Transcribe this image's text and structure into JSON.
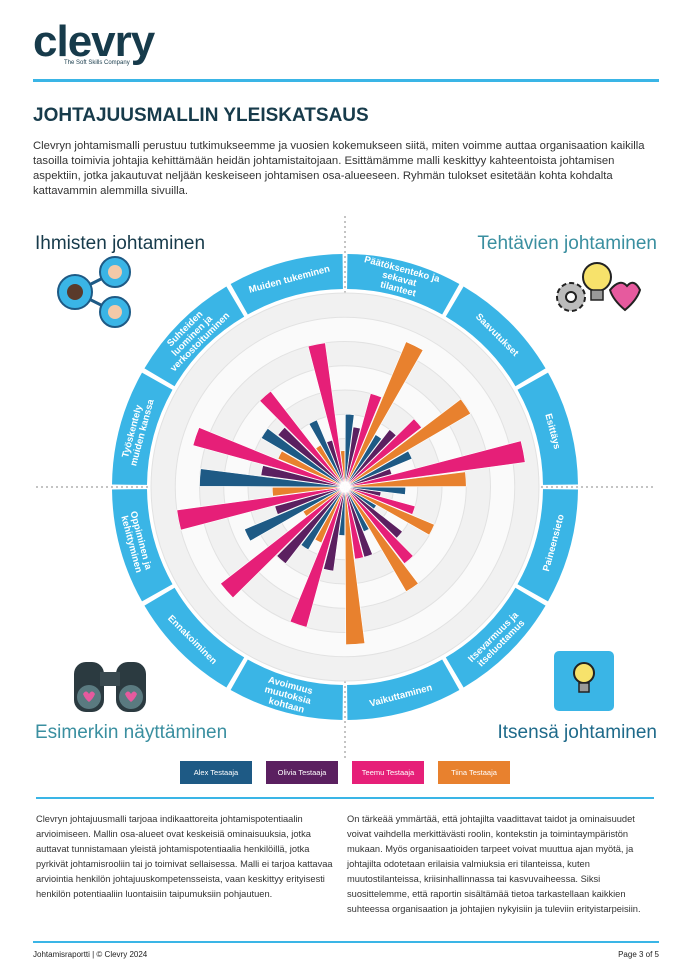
{
  "header": {
    "logo": "clevry",
    "tagline": "The Soft Skills Company"
  },
  "title": "JOHTAJUUSMALLIN YLEISKATSAUS",
  "intro": "Clevryn johtamismalli perustuu tutkimukseemme ja vuosien kokemukseen siitä, miten voimme auttaa organisaation kaikilla tasoilla toimivia johtajia kehittämään heidän johtamistaitojaan. Esittämämme malli keskittyy kahteentoista johtamisen aspektiin, jotka jakautuvat neljään keskeiseen johtamisen osa-alueeseen. Ryhmän tulokset esitetään kohta kohdalta kattavammin alemmilla sivuilla.",
  "chart_data": {
    "type": "radial_bar",
    "quadrant_labels": [
      "Ihmisten johtaminen",
      "Tehtävien johtaminen",
      "Esimerkin näyttäminen",
      "Itsensä johtaminen"
    ],
    "categories": [
      "Päätöksenteko ja sekavat tilanteet",
      "Saavutukset",
      "Esittäys",
      "Paineensieto",
      "Itsevarmuus ja itseluottamus",
      "Vaikuttaminen",
      "Avoimuus muutoksia kohtaan",
      "Ennakoiminen",
      "Oppiminen ja kehittyminen",
      "Työskentely muiden kanssa",
      "Suhteiden luominen ja verkostoituminen",
      "Muiden tukeminen"
    ],
    "series": [
      {
        "name": "Alex Testaaja",
        "color": "#1e5a85",
        "values": [
          3,
          2.5,
          3,
          2.5,
          1.5,
          2,
          2,
          3,
          4.5,
          6,
          4,
          3
        ]
      },
      {
        "name": "Olivia Testaaja",
        "color": "#5b2060",
        "values": [
          2.5,
          3,
          2,
          1.5,
          3,
          3,
          3.5,
          4,
          3,
          3.5,
          3.5,
          2
        ]
      },
      {
        "name": "Teemu Testaaja",
        "color": "#e61f78",
        "values": [
          4,
          4,
          7.5,
          3,
          4,
          3,
          6,
          6.5,
          7,
          6.5,
          5,
          6
        ]
      },
      {
        "name": "Tiina Testaaja",
        "color": "#e8812e",
        "values": [
          6.5,
          6,
          5,
          4,
          5,
          6.5,
          2.5,
          2,
          3,
          3,
          2,
          1.5
        ]
      }
    ],
    "ylim": [
      0,
      8
    ],
    "yticks": [
      1,
      2,
      3,
      4,
      5,
      6,
      7,
      8
    ]
  },
  "body": {
    "columns": [
      "Clevryn johtajuusmalli tarjoaa indikaattoreita johtamispotentiaalin arvioimiseen. Mallin osa-alueet ovat keskeisiä ominaisuuksia, jotka auttavat tunnistamaan yleistä johtamispotentiaalia henkilöillä, jotka pyrkivät johtamisrooliin tai jo toimivat sellaisessa. Malli ei tarjoa kattavaa arviointia henkilön johtajuuskompetensseista, vaan keskittyy erityisesti henkilön potentiaaliin luontaisiin taipumuksiin pohjautuen.",
      "On tärkeää ymmärtää, että johtajilta vaadittavat taidot ja ominaisuudet voivat vaihdella merkittävästi roolin, kontekstin ja toimintaympäristön mukaan. Myös organisaatioiden tarpeet voivat muuttua ajan myötä, ja johtajilta odotetaan erilaisia valmiuksia eri tilanteissa, kuten muutostilanteissa, kriisinhallinnassa tai kasvuvaiheessa. Siksi suosittelemme, että raportin sisältämää tietoa tarkastellaan kaikkien suhteessa organisaation ja johtajien nykyisiin ja tuleviin erityistarpeisiin."
    ]
  },
  "footer": {
    "left": "Johtamisraportti | © Clevry 2024",
    "right": "Page 3 of 5"
  }
}
